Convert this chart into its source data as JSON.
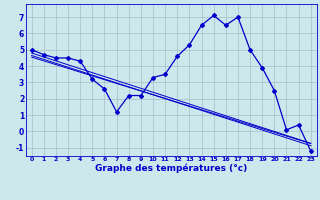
{
  "xlabel": "Graphe des températures (°c)",
  "x_values": [
    0,
    1,
    2,
    3,
    4,
    5,
    6,
    7,
    8,
    9,
    10,
    11,
    12,
    13,
    14,
    15,
    16,
    17,
    18,
    19,
    20,
    21,
    22,
    23
  ],
  "temp_line": [
    5.0,
    4.7,
    4.5,
    4.5,
    4.3,
    3.2,
    2.6,
    1.2,
    2.2,
    2.2,
    3.3,
    3.5,
    4.6,
    5.3,
    6.5,
    7.1,
    6.5,
    7.0,
    5.0,
    3.9,
    2.5,
    0.1,
    0.4,
    -1.2
  ],
  "trend_line1": [
    4.8,
    4.56,
    4.32,
    4.08,
    3.84,
    3.6,
    3.36,
    3.12,
    2.88,
    2.64,
    2.4,
    2.16,
    1.92,
    1.68,
    1.44,
    1.2,
    0.96,
    0.72,
    0.48,
    0.24,
    0.0,
    -0.24,
    -0.48,
    -0.72
  ],
  "trend_line2": [
    4.55,
    4.32,
    4.09,
    3.86,
    3.63,
    3.4,
    3.17,
    2.94,
    2.71,
    2.48,
    2.25,
    2.02,
    1.79,
    1.56,
    1.33,
    1.1,
    0.87,
    0.64,
    0.41,
    0.18,
    -0.05,
    -0.28,
    -0.51,
    -0.74
  ],
  "trend_line3": [
    4.65,
    4.41,
    4.17,
    3.93,
    3.69,
    3.45,
    3.21,
    2.97,
    2.73,
    2.49,
    2.25,
    2.01,
    1.77,
    1.53,
    1.29,
    1.05,
    0.81,
    0.57,
    0.33,
    0.09,
    -0.15,
    -0.39,
    -0.63,
    -0.87
  ],
  "ylim": [
    -1.5,
    7.8
  ],
  "yticks": [
    -1,
    0,
    1,
    2,
    3,
    4,
    5,
    6,
    7
  ],
  "line_color": "#0000cc",
  "bg_color": "#cce8ec",
  "grid_color": "#aabbc8"
}
